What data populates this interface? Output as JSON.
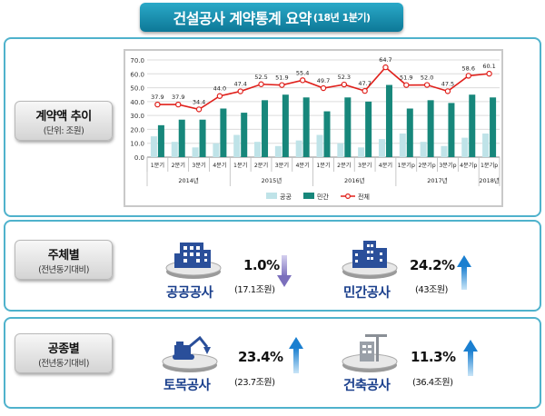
{
  "title": {
    "main": "건설공사 계약통계 요약",
    "sub": "(18년 1분기)"
  },
  "sections": {
    "trend": {
      "label": "계약액 추이",
      "sublabel": "(단위: 조원)"
    },
    "subject": {
      "label": "주체별",
      "sublabel": "(전년동기대비)"
    },
    "worktype": {
      "label": "공종별",
      "sublabel": "(전년동기대비)"
    }
  },
  "stats": {
    "public": {
      "name": "공공공사",
      "pct": "1.0%",
      "amount": "(17.1조원)",
      "direction": "down",
      "icon": "public-building-icon",
      "color": "#8a7fc2"
    },
    "private": {
      "name": "민간공사",
      "pct": "24.2%",
      "amount": "(43조원)",
      "direction": "up",
      "icon": "private-building-icon",
      "color": "#2a86d4"
    },
    "civil": {
      "name": "토목공사",
      "pct": "23.4%",
      "amount": "(23.7조원)",
      "direction": "up",
      "icon": "excavator-icon",
      "color": "#2a86d4"
    },
    "building": {
      "name": "건축공사",
      "pct": "11.3%",
      "amount": "(36.4조원)",
      "direction": "up",
      "icon": "construction-crane-icon",
      "color": "#2a86d4"
    }
  },
  "chart_data": {
    "type": "bar",
    "categories": [
      "1분기",
      "2분기",
      "3분기",
      "4분기",
      "1분기",
      "2분기",
      "3분기",
      "4분기",
      "1분기",
      "2분기",
      "3분기",
      "4분기",
      "1분기p",
      "2분기p",
      "3분기p",
      "4분기p",
      "1분기p"
    ],
    "year_groups": [
      {
        "label": "2014년",
        "count": 4
      },
      {
        "label": "2015년",
        "count": 4
      },
      {
        "label": "2016년",
        "count": 4
      },
      {
        "label": "2017년",
        "count": 4
      },
      {
        "label": "2018년",
        "count": 1
      }
    ],
    "series": [
      {
        "name": "공공",
        "type": "bar",
        "color": "#bfe3e8",
        "values": [
          15,
          11,
          7,
          10,
          16,
          11,
          8,
          12,
          16,
          10,
          7,
          13,
          17,
          11,
          8,
          14,
          17
        ]
      },
      {
        "name": "민간",
        "type": "bar",
        "color": "#17877b",
        "values": [
          23,
          27,
          27,
          35,
          32,
          41,
          45,
          43,
          33,
          43,
          40,
          52,
          35,
          41,
          39,
          45,
          43
        ]
      },
      {
        "name": "전체",
        "type": "line",
        "color": "#e0201b",
        "values": [
          37.9,
          37.9,
          34.4,
          44.0,
          47.4,
          52.5,
          51.9,
          55.4,
          49.7,
          52.3,
          47.7,
          64.7,
          51.9,
          52.0,
          47.5,
          58.6,
          60.1
        ]
      }
    ],
    "ylim": [
      0,
      70
    ],
    "yticks": [
      "0.0",
      "10.0",
      "20.0",
      "30.0",
      "40.0",
      "50.0",
      "60.0",
      "70.0"
    ],
    "grid": true,
    "legend_position": "bottom"
  }
}
